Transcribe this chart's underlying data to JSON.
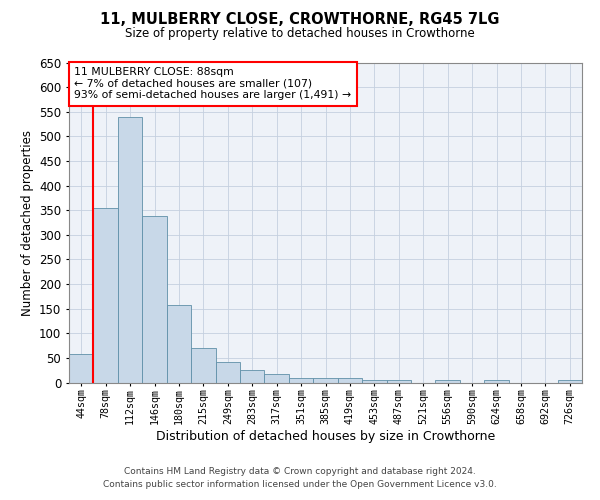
{
  "title": "11, MULBERRY CLOSE, CROWTHORNE, RG45 7LG",
  "subtitle": "Size of property relative to detached houses in Crowthorne",
  "xlabel": "Distribution of detached houses by size in Crowthorne",
  "ylabel": "Number of detached properties",
  "bar_color": "#c8d8e8",
  "bar_edge_color": "#6090a8",
  "grid_color": "#c5d0df",
  "background_color": "#eef2f8",
  "categories": [
    "44sqm",
    "78sqm",
    "112sqm",
    "146sqm",
    "180sqm",
    "215sqm",
    "249sqm",
    "283sqm",
    "317sqm",
    "351sqm",
    "385sqm",
    "419sqm",
    "453sqm",
    "487sqm",
    "521sqm",
    "556sqm",
    "590sqm",
    "624sqm",
    "658sqm",
    "692sqm",
    "726sqm"
  ],
  "values": [
    58,
    355,
    540,
    338,
    157,
    70,
    42,
    25,
    18,
    10,
    9,
    9,
    5,
    5,
    0,
    5,
    0,
    5,
    0,
    0,
    5
  ],
  "ylim": [
    0,
    650
  ],
  "yticks": [
    0,
    50,
    100,
    150,
    200,
    250,
    300,
    350,
    400,
    450,
    500,
    550,
    600,
    650
  ],
  "annotation_title": "11 MULBERRY CLOSE: 88sqm",
  "annotation_line1": "← 7% of detached houses are smaller (107)",
  "annotation_line2": "93% of semi-detached houses are larger (1,491) →",
  "vline_bar_index": 1,
  "footer1": "Contains HM Land Registry data © Crown copyright and database right 2024.",
  "footer2": "Contains public sector information licensed under the Open Government Licence v3.0."
}
